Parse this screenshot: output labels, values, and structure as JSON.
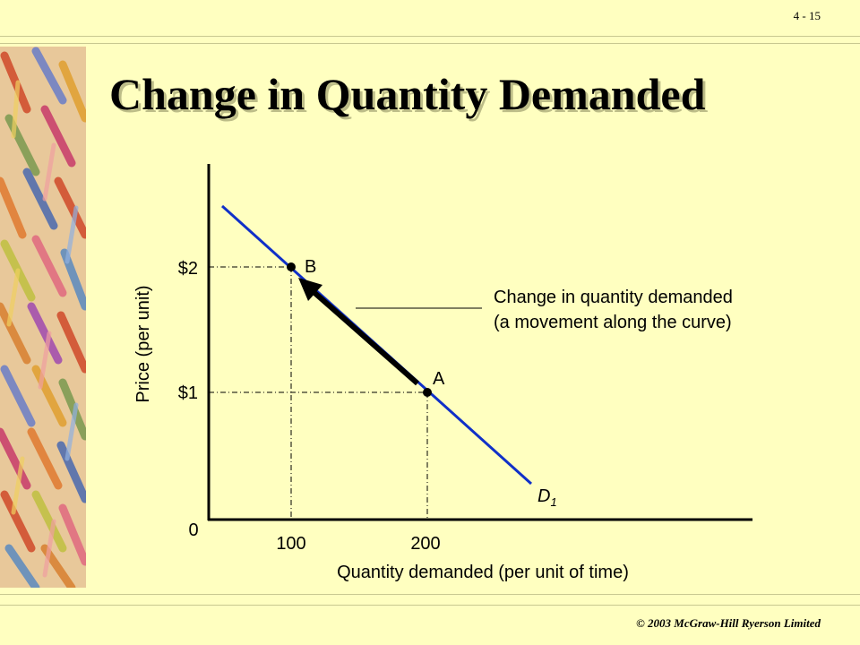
{
  "page_number": "4 - 15",
  "title": "Change in Quantity Demanded",
  "footer": "© 2003 McGraw-Hill Ryerson Limited",
  "diagram": {
    "y_axis_label": "Price (per unit)",
    "x_axis_label": "Quantity demanded (per unit of time)",
    "origin_label": "0",
    "price_ticks": [
      "$2",
      "$1"
    ],
    "quantity_ticks": [
      "100",
      "200"
    ],
    "curve_label": "D",
    "curve_subscript": "1",
    "point_b_label": "B",
    "point_a_label": "A",
    "annotation_line1": "Change in quantity demanded",
    "annotation_line2": "(a movement along the curve)",
    "colors": {
      "curve": "#1030c8",
      "arrow": "#000000",
      "background": "#ffffc0"
    }
  }
}
